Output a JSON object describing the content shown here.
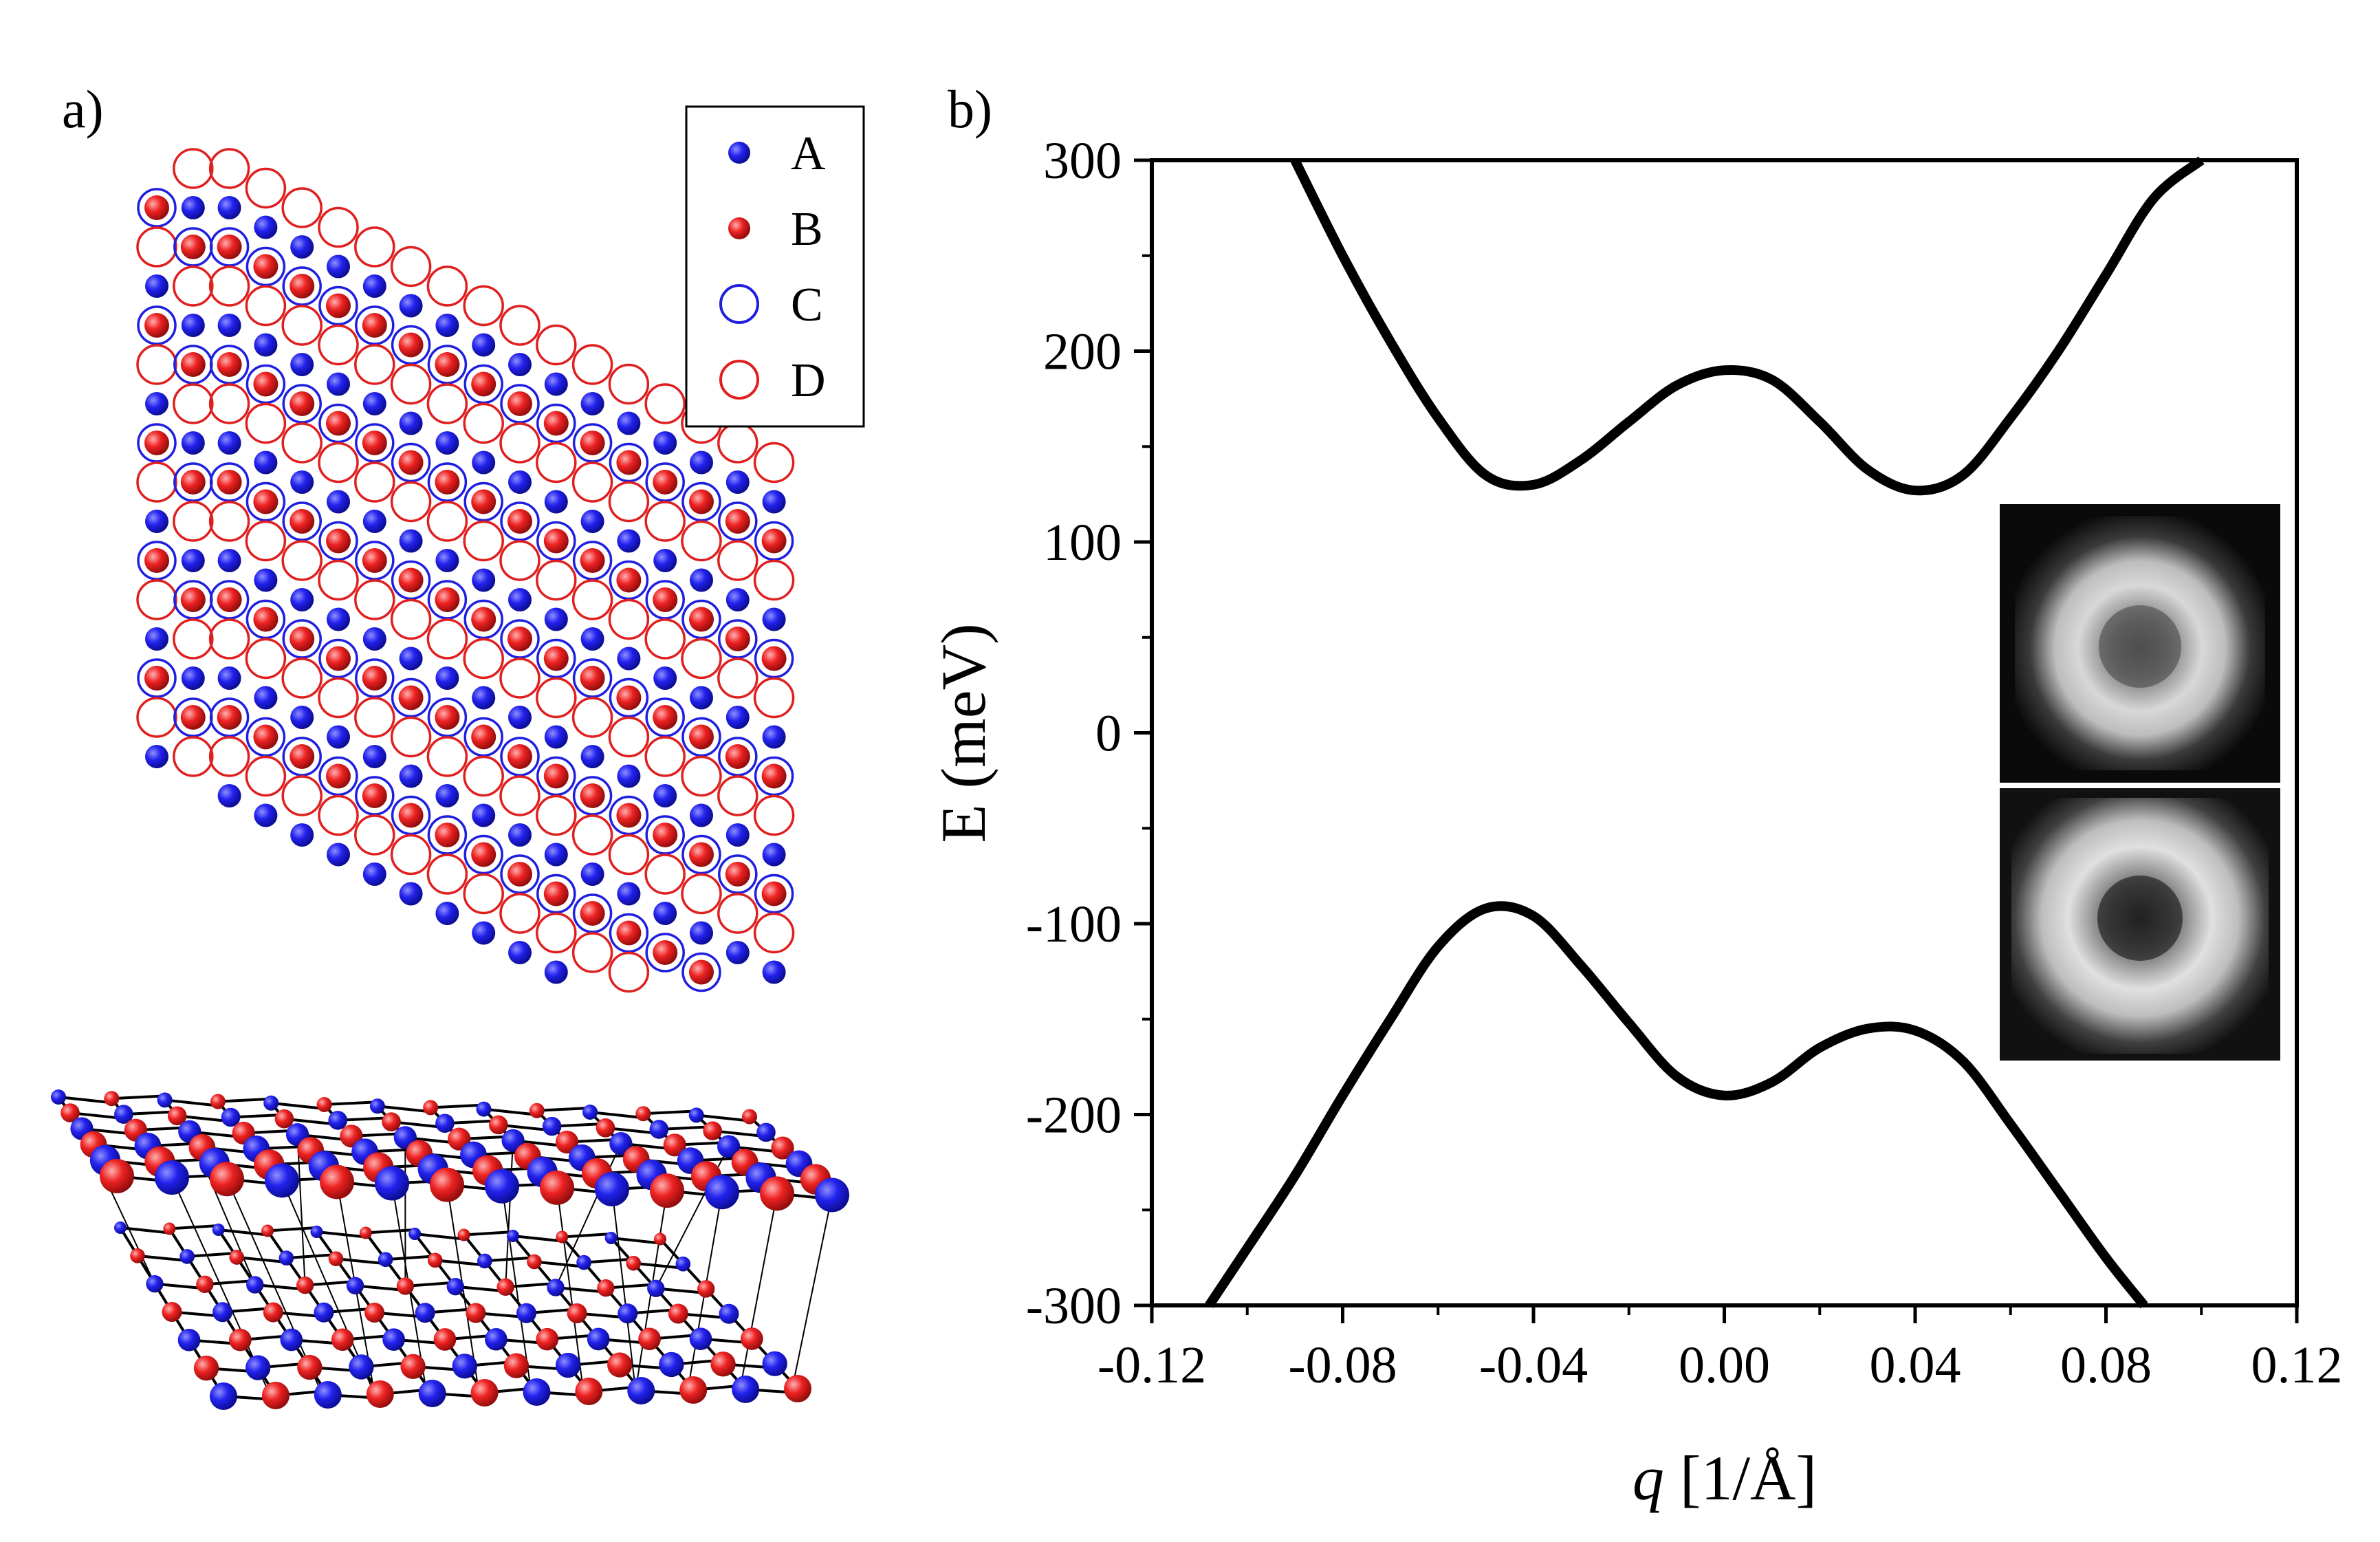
{
  "panels": {
    "a_label": "a)",
    "b_label": "b)"
  },
  "legend": {
    "items": [
      {
        "label": "A",
        "style": "filled",
        "color": "#1f1fe0"
      },
      {
        "label": "B",
        "style": "filled",
        "color": "#e01f1f"
      },
      {
        "label": "C",
        "style": "ring",
        "color": "#1f1fe0"
      },
      {
        "label": "D",
        "style": "ring",
        "color": "#e01f1f"
      }
    ]
  },
  "lattice": {
    "description_colors": {
      "A": "#1f1fe0",
      "B": "#e01f1f",
      "C": "#1f1fe0",
      "D": "#e01f1f"
    }
  },
  "chart_data": {
    "type": "line",
    "xlabel_italic": "q",
    "xlabel_rest": " [1/Å]",
    "ylabel": "E (meV)",
    "xlim": [
      -0.12,
      0.12
    ],
    "ylim": [
      -300,
      300
    ],
    "xticks": [
      "-0.12",
      "-0.08",
      "-0.04",
      "0.00",
      "0.04",
      "0.08",
      "0.12"
    ],
    "yticks": [
      "300",
      "200",
      "100",
      "0",
      "-100",
      "-200",
      "-300"
    ],
    "series": [
      {
        "x": [
          -0.09,
          -0.08,
          -0.07,
          -0.06,
          -0.05,
          -0.04,
          -0.03,
          -0.02,
          -0.01,
          0.0,
          0.01,
          0.02,
          0.03,
          0.04,
          0.05,
          0.06,
          0.07,
          0.08,
          0.09,
          0.1
        ],
        "y": [
          300,
          250,
          205,
          165,
          135,
          130,
          143,
          163,
          182,
          190,
          185,
          163,
          138,
          127,
          135,
          165,
          200,
          240,
          280,
          300
        ]
      },
      {
        "x": [
          -0.108,
          -0.1,
          -0.09,
          -0.08,
          -0.07,
          -0.06,
          -0.05,
          -0.04,
          -0.03,
          -0.02,
          -0.01,
          0.0,
          0.01,
          0.02,
          0.03,
          0.04,
          0.05,
          0.06,
          0.07,
          0.08,
          0.088
        ],
        "y": [
          -300,
          -270,
          -232,
          -190,
          -150,
          -112,
          -92,
          -96,
          -122,
          -152,
          -180,
          -190,
          -183,
          -165,
          -155,
          -156,
          -172,
          -205,
          -240,
          -275,
          -300
        ]
      }
    ],
    "line_color": "#000000",
    "inset": {
      "count": 2,
      "description": "grayscale density maps"
    }
  }
}
